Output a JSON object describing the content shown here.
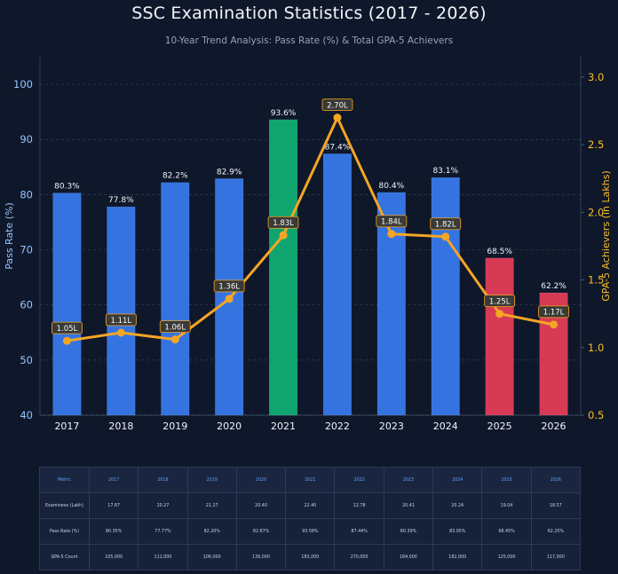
{
  "title": "SSC Examination Statistics (2017 - 2026)",
  "subtitle": "10-Year Trend Analysis: Pass Rate (%) & Total GPA-5 Achievers",
  "colors": {
    "bar_normal": "#3574e0",
    "bar_peak": "#10a56e",
    "bar_low": "#d63a55",
    "line": "#f5a524",
    "left_axis": "#93c5fd",
    "right_axis": "#fbbf24"
  },
  "chart_data": {
    "type": "bar",
    "categories": [
      "2017",
      "2018",
      "2019",
      "2020",
      "2021",
      "2022",
      "2023",
      "2024",
      "2025",
      "2026"
    ],
    "series": [
      {
        "name": "Pass Rate (%)",
        "type": "bar",
        "axis": "left",
        "values": [
          80.3,
          77.8,
          82.2,
          82.9,
          93.6,
          87.4,
          80.4,
          83.1,
          68.5,
          62.2
        ],
        "labels": [
          "80.3%",
          "77.8%",
          "82.2%",
          "82.9%",
          "93.6%",
          "87.4%",
          "80.4%",
          "83.1%",
          "68.5%",
          "62.2%"
        ],
        "highlight": [
          "normal",
          "normal",
          "normal",
          "normal",
          "peak",
          "normal",
          "normal",
          "normal",
          "low",
          "low"
        ]
      },
      {
        "name": "GPA-5 Achievers (in Lakhs)",
        "type": "line",
        "axis": "right",
        "values": [
          1.05,
          1.11,
          1.06,
          1.36,
          1.83,
          2.7,
          1.84,
          1.82,
          1.25,
          1.17
        ],
        "labels": [
          "1.05L",
          "1.11L",
          "1.06L",
          "1.36L",
          "1.83L",
          "2.70L",
          "1.84L",
          "1.82L",
          "1.25L",
          "1.17L"
        ]
      }
    ],
    "ylabel": "Pass Rate (%)",
    "y2label": "GPA-5 Achievers (in Lakhs)",
    "ylim": [
      40,
      105
    ],
    "yticks": [
      "40",
      "50",
      "60",
      "70",
      "80",
      "90",
      "100"
    ],
    "y2lim": [
      0.5,
      3.15
    ],
    "y2ticks": [
      "0.5",
      "1.0",
      "1.5",
      "2.0",
      "2.5",
      "3.0"
    ],
    "grid": true
  },
  "table": {
    "header": [
      "Metric",
      "2017",
      "2018",
      "2019",
      "2020",
      "2021",
      "2022",
      "2023",
      "2024",
      "2025",
      "2026"
    ],
    "rows": [
      [
        "Examinees (Lakh)",
        "17.87",
        "20.27",
        "21.27",
        "20.40",
        "22.40",
        "22.78",
        "20.41",
        "20.24",
        "19.04",
        "18.57"
      ],
      [
        "Pass Rate (%)",
        "80.35%",
        "77.77%",
        "82.20%",
        "82.87%",
        "93.58%",
        "87.44%",
        "80.39%",
        "83.05%",
        "68.45%",
        "62.25%"
      ],
      [
        "GPA-5 Count",
        "105,000",
        "111,000",
        "106,000",
        "136,000",
        "183,000",
        "270,000",
        "184,000",
        "182,000",
        "125,000",
        "117,000"
      ]
    ]
  }
}
